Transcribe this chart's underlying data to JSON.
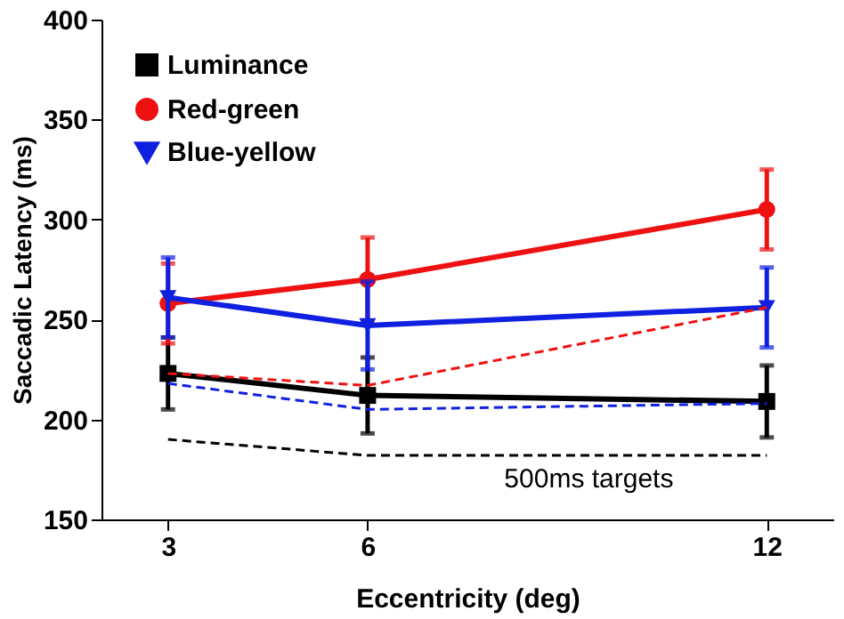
{
  "chart_data": {
    "type": "line",
    "xlabel": "Eccentricity (deg)",
    "ylabel": "Saccadic Latency (ms)",
    "x": [
      3,
      6,
      12
    ],
    "xlim": [
      2,
      13
    ],
    "xticks": [
      3,
      6,
      12
    ],
    "ylim": [
      150,
      400
    ],
    "yticks": [
      150,
      200,
      250,
      300,
      350,
      400
    ],
    "grid": false,
    "legend": "top left",
    "line_style": "solid",
    "series": [
      {
        "name": "Luminance",
        "color": "#000000",
        "marker": "square",
        "values": [
          223,
          212,
          209
        ],
        "errors": [
          18,
          19,
          18
        ]
      },
      {
        "name": "Red-green",
        "color": "#ee1111",
        "marker": "circle",
        "values": [
          258,
          270,
          305
        ],
        "errors": [
          20,
          21,
          20
        ]
      },
      {
        "name": "Blue-yellow",
        "color": "#1020e0",
        "marker": "triangle-down",
        "values": [
          261,
          247,
          256
        ],
        "errors": [
          20,
          22,
          20
        ]
      },
      {
        "color": "#ee1111",
        "marker": "none",
        "line_style": "dashed",
        "values": [
          223,
          217,
          256
        ]
      },
      {
        "color": "#1020e0",
        "marker": "none",
        "line_style": "dashed",
        "values": [
          218,
          205,
          208
        ]
      },
      {
        "color": "#000000",
        "marker": "none",
        "line_style": "dashed",
        "values": [
          190,
          182,
          182
        ]
      }
    ],
    "annotations": [
      {
        "text": "500ms targets",
        "x": 8,
        "y": 182
      }
    ]
  }
}
